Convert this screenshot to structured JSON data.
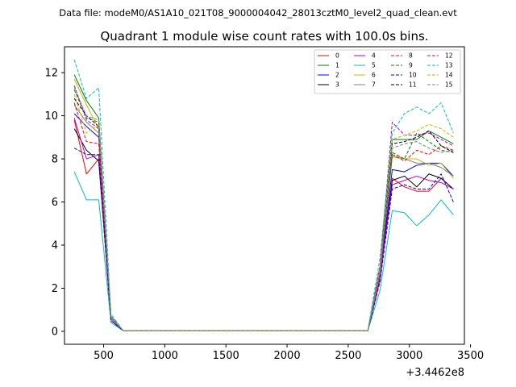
{
  "figure": {
    "suptitle": "Data file: modeM0/AS1A10_021T08_9000004042_28013cztM0_level2_quad_clean.evt"
  },
  "chart_data": {
    "type": "line",
    "title": "Quadrant 1 module wise count rates with 100.0s bins.",
    "xlabel": "",
    "ylabel": "",
    "x_offset_label": "+3.4462e8",
    "xlim": [
      180,
      3450
    ],
    "ylim": [
      -0.6,
      13.2
    ],
    "xticks": [
      500,
      1000,
      1500,
      2000,
      2500,
      3000,
      3500
    ],
    "yticks": [
      0,
      2,
      4,
      6,
      8,
      10,
      12
    ],
    "xtick_labels": [
      "500",
      "1000",
      "1500",
      "2000",
      "2500",
      "3000",
      "3500"
    ],
    "ytick_labels": [
      "0",
      "2",
      "4",
      "6",
      "8",
      "10",
      "12"
    ],
    "grid": false,
    "legend_position": "top-right",
    "legend_columns": 4,
    "x": [
      260,
      360,
      460,
      560,
      660,
      760,
      860,
      960,
      1060,
      1160,
      1260,
      1360,
      1460,
      1560,
      1660,
      1760,
      1860,
      1960,
      2060,
      2160,
      2260,
      2360,
      2460,
      2560,
      2660,
      2760,
      2860,
      2960,
      3060,
      3160,
      3260,
      3360
    ],
    "series": [
      {
        "name": "0",
        "color": "#ff0000",
        "dash": "solid",
        "values": [
          9.8,
          7.3,
          8.0,
          0.5,
          0.03,
          0.02,
          0.02,
          0.02,
          0.02,
          0.02,
          0.02,
          0.02,
          0.02,
          0.02,
          0.02,
          0.02,
          0.02,
          0.02,
          0.02,
          0.02,
          0.02,
          0.02,
          0.02,
          0.02,
          0.02,
          2.4,
          7.1,
          6.7,
          6.5,
          6.5,
          7.1,
          6.6
        ]
      },
      {
        "name": "1",
        "color": "#008000",
        "dash": "solid",
        "values": [
          11.9,
          10.7,
          9.9,
          0.7,
          0.03,
          0.02,
          0.02,
          0.02,
          0.02,
          0.02,
          0.02,
          0.02,
          0.02,
          0.02,
          0.02,
          0.02,
          0.02,
          0.02,
          0.02,
          0.02,
          0.02,
          0.02,
          0.02,
          0.02,
          0.02,
          3.0,
          8.9,
          8.9,
          8.9,
          9.3,
          9.0,
          8.7
        ]
      },
      {
        "name": "2",
        "color": "#0000ff",
        "dash": "solid",
        "values": [
          10.1,
          9.5,
          9.0,
          0.6,
          0.03,
          0.02,
          0.02,
          0.02,
          0.02,
          0.02,
          0.02,
          0.02,
          0.02,
          0.02,
          0.02,
          0.02,
          0.02,
          0.02,
          0.02,
          0.02,
          0.02,
          0.02,
          0.02,
          0.02,
          0.02,
          2.6,
          7.5,
          7.4,
          7.7,
          7.8,
          7.8,
          7.2
        ]
      },
      {
        "name": "3",
        "color": "#000000",
        "dash": "solid",
        "values": [
          9.4,
          8.4,
          7.9,
          0.6,
          0.03,
          0.02,
          0.02,
          0.02,
          0.02,
          0.02,
          0.02,
          0.02,
          0.02,
          0.02,
          0.02,
          0.02,
          0.02,
          0.02,
          0.02,
          0.02,
          0.02,
          0.02,
          0.02,
          0.02,
          0.02,
          2.5,
          7.0,
          7.2,
          6.7,
          7.3,
          7.1,
          6.6
        ]
      },
      {
        "name": "4",
        "color": "#bf00bf",
        "dash": "solid",
        "values": [
          9.9,
          8.0,
          8.2,
          0.5,
          0.03,
          0.02,
          0.02,
          0.02,
          0.02,
          0.02,
          0.02,
          0.02,
          0.02,
          0.02,
          0.02,
          0.02,
          0.02,
          0.02,
          0.02,
          0.02,
          0.02,
          0.02,
          0.02,
          0.02,
          0.02,
          2.5,
          6.8,
          7.0,
          7.2,
          7.0,
          6.9,
          6.6
        ]
      },
      {
        "name": "5",
        "color": "#00bfbf",
        "dash": "solid",
        "values": [
          7.4,
          6.1,
          6.1,
          0.4,
          0.03,
          0.02,
          0.02,
          0.02,
          0.02,
          0.02,
          0.02,
          0.02,
          0.02,
          0.02,
          0.02,
          0.02,
          0.02,
          0.02,
          0.02,
          0.02,
          0.02,
          0.02,
          0.02,
          0.02,
          0.02,
          1.9,
          5.6,
          5.5,
          4.9,
          5.4,
          6.1,
          5.4
        ]
      },
      {
        "name": "6",
        "color": "#bfbf00",
        "dash": "solid",
        "values": [
          11.7,
          10.5,
          9.4,
          0.7,
          0.03,
          0.02,
          0.02,
          0.02,
          0.02,
          0.02,
          0.02,
          0.02,
          0.02,
          0.02,
          0.02,
          0.02,
          0.02,
          0.02,
          0.02,
          0.02,
          0.02,
          0.02,
          0.02,
          0.02,
          0.02,
          2.8,
          8.2,
          8.0,
          8.0,
          7.7,
          7.8,
          7.1
        ]
      },
      {
        "name": "7",
        "color": "#808080",
        "dash": "solid",
        "values": [
          10.5,
          9.7,
          9.2,
          0.6,
          0.03,
          0.02,
          0.02,
          0.02,
          0.02,
          0.02,
          0.02,
          0.02,
          0.02,
          0.02,
          0.02,
          0.02,
          0.02,
          0.02,
          0.02,
          0.02,
          0.02,
          0.02,
          0.02,
          0.02,
          0.02,
          2.7,
          8.1,
          8.0,
          7.8,
          7.8,
          7.6,
          7.2
        ]
      },
      {
        "name": "8",
        "color": "#ff0000",
        "dash": "dashed",
        "values": [
          10.6,
          8.8,
          8.7,
          0.7,
          0.03,
          0.02,
          0.02,
          0.02,
          0.02,
          0.02,
          0.02,
          0.02,
          0.02,
          0.02,
          0.02,
          0.02,
          0.02,
          0.02,
          0.02,
          0.02,
          0.02,
          0.02,
          0.02,
          0.02,
          0.02,
          2.8,
          8.2,
          7.9,
          8.4,
          8.2,
          8.6,
          8.4
        ]
      },
      {
        "name": "9",
        "color": "#008000",
        "dash": "dashed",
        "values": [
          11.2,
          9.9,
          9.7,
          0.7,
          0.03,
          0.02,
          0.02,
          0.02,
          0.02,
          0.02,
          0.02,
          0.02,
          0.02,
          0.02,
          0.02,
          0.02,
          0.02,
          0.02,
          0.02,
          0.02,
          0.02,
          0.02,
          0.02,
          0.02,
          0.02,
          2.9,
          8.3,
          8.0,
          9.2,
          8.8,
          8.4,
          8.3
        ]
      },
      {
        "name": "10",
        "color": "#0000ff",
        "dash": "dashed",
        "values": [
          8.5,
          8.2,
          8.2,
          0.5,
          0.03,
          0.02,
          0.02,
          0.02,
          0.02,
          0.02,
          0.02,
          0.02,
          0.02,
          0.02,
          0.02,
          0.02,
          0.02,
          0.02,
          0.02,
          0.02,
          0.02,
          0.02,
          0.02,
          0.02,
          0.02,
          2.3,
          6.6,
          6.8,
          6.6,
          6.6,
          7.3,
          6.0
        ]
      },
      {
        "name": "11",
        "color": "#000000",
        "dash": "dashed",
        "values": [
          10.8,
          10.0,
          9.5,
          0.7,
          0.03,
          0.02,
          0.02,
          0.02,
          0.02,
          0.02,
          0.02,
          0.02,
          0.02,
          0.02,
          0.02,
          0.02,
          0.02,
          0.02,
          0.02,
          0.02,
          0.02,
          0.02,
          0.02,
          0.02,
          0.02,
          2.9,
          8.7,
          8.8,
          9.0,
          9.3,
          8.6,
          8.3
        ]
      },
      {
        "name": "12",
        "color": "#bf00bf",
        "dash": "dashed",
        "values": [
          11.4,
          9.8,
          9.4,
          0.7,
          0.03,
          0.02,
          0.02,
          0.02,
          0.02,
          0.02,
          0.02,
          0.02,
          0.02,
          0.02,
          0.02,
          0.02,
          0.02,
          0.02,
          0.02,
          0.02,
          0.02,
          0.02,
          0.02,
          0.02,
          0.02,
          3.0,
          9.7,
          9.1,
          9.1,
          9.2,
          8.9,
          8.6
        ]
      },
      {
        "name": "13",
        "color": "#00bfbf",
        "dash": "dashed",
        "values": [
          12.6,
          10.8,
          11.3,
          0.8,
          0.03,
          0.02,
          0.02,
          0.02,
          0.02,
          0.02,
          0.02,
          0.02,
          0.02,
          0.02,
          0.02,
          0.02,
          0.02,
          0.02,
          0.02,
          0.02,
          0.02,
          0.02,
          0.02,
          0.02,
          0.02,
          3.4,
          9.2,
          10.1,
          10.4,
          10.1,
          10.6,
          9.2
        ]
      },
      {
        "name": "14",
        "color": "#bfbf00",
        "dash": "dashed",
        "values": [
          11.0,
          9.2,
          9.6,
          0.7,
          0.03,
          0.02,
          0.02,
          0.02,
          0.02,
          0.02,
          0.02,
          0.02,
          0.02,
          0.02,
          0.02,
          0.02,
          0.02,
          0.02,
          0.02,
          0.02,
          0.02,
          0.02,
          0.02,
          0.02,
          0.02,
          2.9,
          8.9,
          9.1,
          9.3,
          9.6,
          9.4,
          9.0
        ]
      },
      {
        "name": "15",
        "color": "#808080",
        "dash": "dashed",
        "values": [
          11.3,
          10.0,
          9.8,
          0.7,
          0.03,
          0.02,
          0.02,
          0.02,
          0.02,
          0.02,
          0.02,
          0.02,
          0.02,
          0.02,
          0.02,
          0.02,
          0.02,
          0.02,
          0.02,
          0.02,
          0.02,
          0.02,
          0.02,
          0.02,
          0.02,
          2.8,
          8.5,
          8.7,
          8.8,
          8.5,
          8.3,
          8.4
        ]
      }
    ]
  }
}
